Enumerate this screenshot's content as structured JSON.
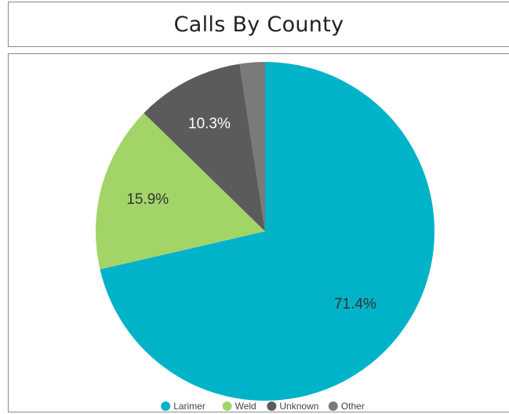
{
  "title": "Calls By County",
  "chart_data": {
    "type": "pie",
    "slices": [
      {
        "label": "Larimer",
        "value": 71.4,
        "display": "71.4%",
        "color": "#00b3c9",
        "label_color": "#333333"
      },
      {
        "label": "Weld",
        "value": 15.9,
        "display": "15.9%",
        "color": "#a3d468",
        "label_color": "#333333"
      },
      {
        "label": "Unknown",
        "value": 10.3,
        "display": "10.3%",
        "color": "#5b5b5b",
        "label_color": "#ffffff"
      },
      {
        "label": "Other",
        "value": 2.4,
        "display": "",
        "color": "#7a7a7a",
        "label_color": "#ffffff"
      }
    ],
    "legend_position": "bottom"
  }
}
